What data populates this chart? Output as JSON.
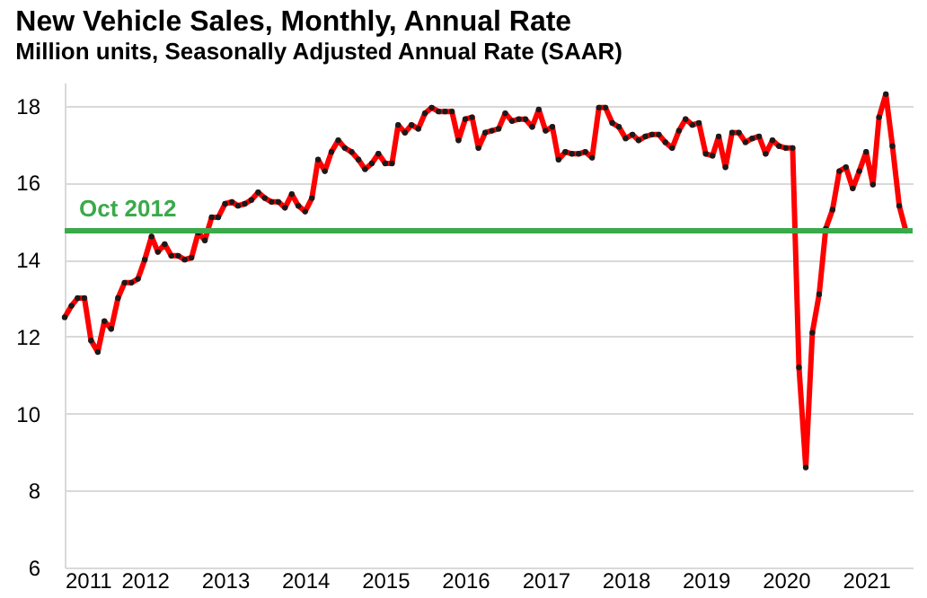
{
  "chart_data": {
    "type": "line",
    "title": "New Vehicle Sales, Monthly, Annual Rate",
    "subtitle": "Million units, Seasonally Adjusted Annual Rate (SAAR)",
    "x": [
      "2011-01",
      "2011-02",
      "2011-03",
      "2011-04",
      "2011-05",
      "2011-06",
      "2011-07",
      "2011-08",
      "2011-09",
      "2011-10",
      "2011-11",
      "2011-12",
      "2012-01",
      "2012-02",
      "2012-03",
      "2012-04",
      "2012-05",
      "2012-06",
      "2012-07",
      "2012-08",
      "2012-09",
      "2012-10",
      "2012-11",
      "2012-12",
      "2013-01",
      "2013-02",
      "2013-03",
      "2013-04",
      "2013-05",
      "2013-06",
      "2013-07",
      "2013-08",
      "2013-09",
      "2013-10",
      "2013-11",
      "2013-12",
      "2014-01",
      "2014-02",
      "2014-03",
      "2014-04",
      "2014-05",
      "2014-06",
      "2014-07",
      "2014-08",
      "2014-09",
      "2014-10",
      "2014-11",
      "2014-12",
      "2015-01",
      "2015-02",
      "2015-03",
      "2015-04",
      "2015-05",
      "2015-06",
      "2015-07",
      "2015-08",
      "2015-09",
      "2015-10",
      "2015-11",
      "2015-12",
      "2016-01",
      "2016-02",
      "2016-03",
      "2016-04",
      "2016-05",
      "2016-06",
      "2016-07",
      "2016-08",
      "2016-09",
      "2016-10",
      "2016-11",
      "2016-12",
      "2017-01",
      "2017-02",
      "2017-03",
      "2017-04",
      "2017-05",
      "2017-06",
      "2017-07",
      "2017-08",
      "2017-09",
      "2017-10",
      "2017-11",
      "2017-12",
      "2018-01",
      "2018-02",
      "2018-03",
      "2018-04",
      "2018-05",
      "2018-06",
      "2018-07",
      "2018-08",
      "2018-09",
      "2018-10",
      "2018-11",
      "2018-12",
      "2019-01",
      "2019-02",
      "2019-03",
      "2019-04",
      "2019-05",
      "2019-06",
      "2019-07",
      "2019-08",
      "2019-09",
      "2019-10",
      "2019-11",
      "2019-12",
      "2020-01",
      "2020-02",
      "2020-03",
      "2020-04",
      "2020-05",
      "2020-06",
      "2020-07",
      "2020-08",
      "2020-09",
      "2020-10",
      "2020-11",
      "2020-12",
      "2021-01",
      "2021-02",
      "2021-03",
      "2021-04",
      "2021-05",
      "2021-06",
      "2021-07"
    ],
    "series": [
      {
        "color": "#ff0000",
        "values": [
          12.5,
          12.8,
          13.0,
          13.0,
          11.9,
          11.6,
          12.4,
          12.2,
          13.0,
          13.4,
          13.4,
          13.5,
          14.0,
          14.6,
          14.2,
          14.4,
          14.1,
          14.1,
          14.0,
          14.05,
          14.7,
          14.5,
          15.1,
          15.1,
          15.45,
          15.5,
          15.4,
          15.45,
          15.55,
          15.75,
          15.6,
          15.5,
          15.5,
          15.35,
          15.7,
          15.4,
          15.25,
          15.6,
          16.6,
          16.3,
          16.8,
          17.1,
          16.9,
          16.8,
          16.6,
          16.35,
          16.5,
          16.75,
          16.5,
          16.5,
          17.5,
          17.3,
          17.5,
          17.4,
          17.8,
          17.95,
          17.85,
          17.85,
          17.85,
          17.1,
          17.65,
          17.7,
          16.9,
          17.3,
          17.35,
          17.4,
          17.8,
          17.6,
          17.65,
          17.65,
          17.45,
          17.9,
          17.35,
          17.45,
          16.6,
          16.8,
          16.75,
          16.75,
          16.8,
          16.65,
          17.95,
          17.95,
          17.55,
          17.45,
          17.15,
          17.25,
          17.1,
          17.2,
          17.25,
          17.25,
          17.05,
          16.9,
          17.35,
          17.65,
          17.5,
          17.55,
          16.75,
          16.7,
          17.2,
          16.4,
          17.3,
          17.3,
          17.05,
          17.15,
          17.2,
          16.75,
          17.1,
          16.95,
          16.9,
          16.9,
          11.2,
          8.6,
          12.1,
          13.1,
          14.8,
          15.3,
          16.3,
          16.4,
          15.85,
          16.3,
          16.8,
          15.95,
          17.7,
          18.3,
          16.95,
          15.4,
          14.75
        ]
      }
    ],
    "xlim": [
      "2011-01",
      "2021-08"
    ],
    "xticks": [
      "2011",
      "2012",
      "2013",
      "2014",
      "2015",
      "2016",
      "2017",
      "2018",
      "2019",
      "2020",
      "2021"
    ],
    "ylim": [
      6,
      18.6
    ],
    "yticks": [
      6,
      8,
      10,
      12,
      14,
      16,
      18
    ],
    "ref_lines": [
      {
        "axis": "y",
        "value": 14.75,
        "label": "Oct 2012",
        "color": "#3aaa4a"
      }
    ],
    "grid": "y",
    "marker": "circle",
    "line_style": "solid"
  }
}
